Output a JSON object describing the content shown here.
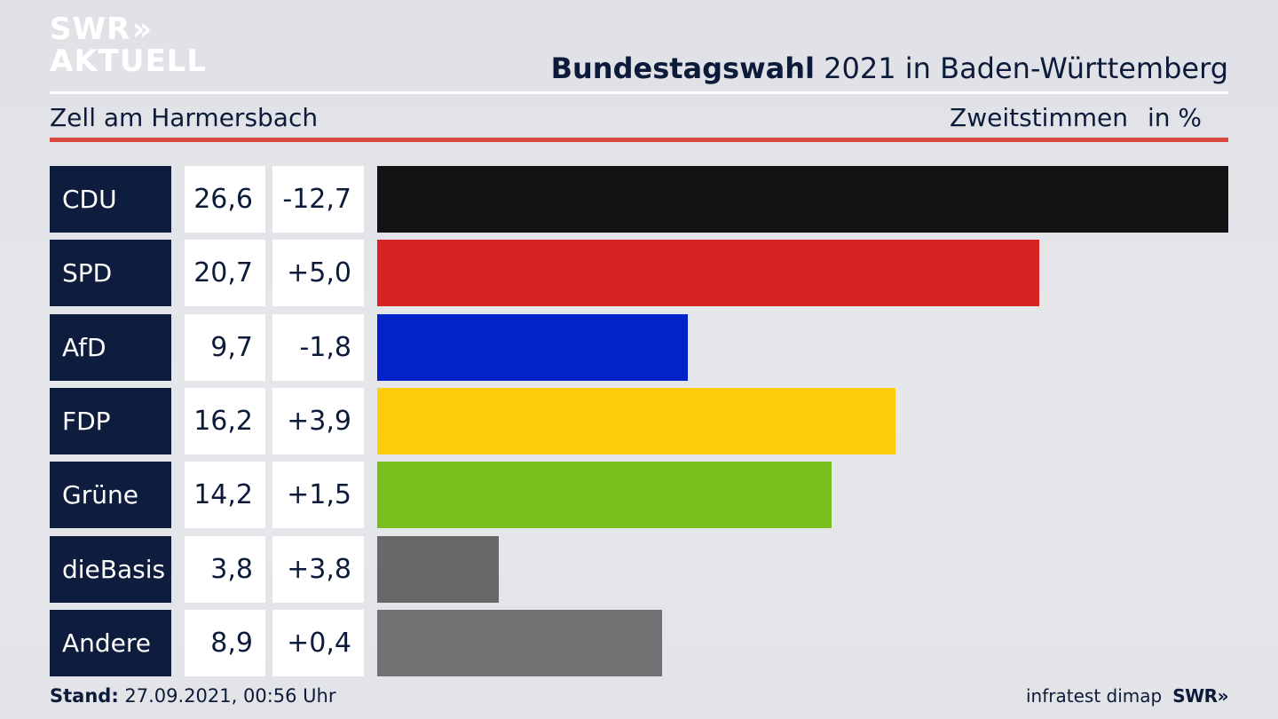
{
  "logo": {
    "line1": "SWR",
    "line1_chevrons": "»",
    "line2": "AKTUELL"
  },
  "header": {
    "title_bold": "Bundestagswahl",
    "title_rest": " 2021 in Baden-Württemberg",
    "subtitle": "Zell am Harmersbach",
    "metric": "Zweitstimmen",
    "unit": "in %"
  },
  "colors": {
    "navy": "#0e1d3d",
    "accent_red": "#d8493f"
  },
  "chart_data": {
    "type": "bar",
    "orientation": "horizontal",
    "title": "Bundestagswahl 2021 in Baden-Württemberg",
    "xmax": 26.6,
    "categories": [
      "CDU",
      "SPD",
      "AfD",
      "FDP",
      "Grüne",
      "dieBasis",
      "Andere"
    ],
    "rows": [
      {
        "party": "CDU",
        "value": 26.6,
        "value_label": "26,6",
        "change_label": "-12,7",
        "color": "#131313"
      },
      {
        "party": "SPD",
        "value": 20.7,
        "value_label": "20,7",
        "change_label": "+5,0",
        "color": "#d82121"
      },
      {
        "party": "AfD",
        "value": 9.7,
        "value_label": "9,7",
        "change_label": "-1,8",
        "color": "#0323c8"
      },
      {
        "party": "FDP",
        "value": 16.2,
        "value_label": "16,2",
        "change_label": "+3,9",
        "color": "#fdcd0a"
      },
      {
        "party": "Grüne",
        "value": 14.2,
        "value_label": "14,2",
        "change_label": "+1,5",
        "color": "#78be1c"
      },
      {
        "party": "dieBasis",
        "value": 3.8,
        "value_label": "3,8",
        "change_label": "+3,8",
        "color": "#686868"
      },
      {
        "party": "Andere",
        "value": 8.9,
        "value_label": "8,9",
        "change_label": "+0,4",
        "color": "#717174"
      }
    ]
  },
  "footer": {
    "stand_label": "Stand:",
    "stand_value": " 27.09.2021, 00:56 Uhr",
    "source": "infratest dimap",
    "brand": "SWR»"
  }
}
